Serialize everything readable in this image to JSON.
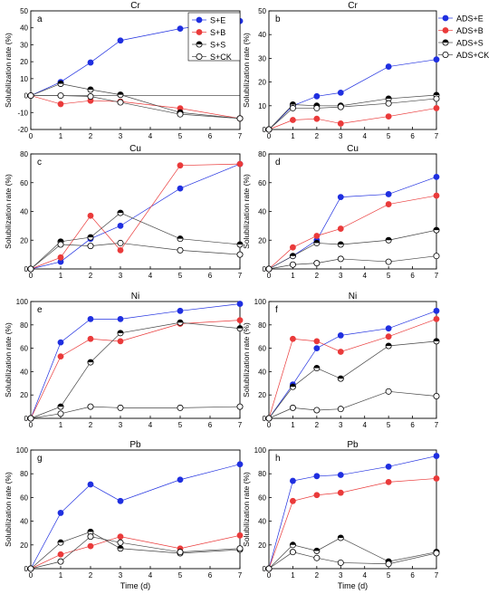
{
  "colors": {
    "E": "#1f2fe0",
    "B": "#ea3a3a",
    "S": "#000000",
    "CK": "#000000"
  },
  "chart_data": [
    {
      "type": "line",
      "panel": "a",
      "title": "Cr",
      "xlabel": "",
      "ylabel": "Solubilization rate (%)",
      "xlim": [
        0,
        7
      ],
      "ylim": [
        -20,
        50
      ],
      "x_ticks": [
        0,
        1,
        2,
        3,
        4,
        5,
        6,
        7
      ],
      "y_ticks": [
        -20,
        -10,
        0,
        10,
        20,
        30,
        40,
        50
      ],
      "legend": "top-right",
      "series": [
        {
          "name": "S+E",
          "key": "E",
          "x": [
            0,
            1,
            2,
            3,
            5,
            7
          ],
          "y": [
            0,
            8,
            19.5,
            32.5,
            39.5,
            44
          ]
        },
        {
          "name": "S+B",
          "key": "B",
          "x": [
            0,
            1,
            2,
            3,
            5,
            7
          ],
          "y": [
            0,
            -5,
            -3,
            -3.5,
            -7.5,
            -13.5
          ]
        },
        {
          "name": "S+S",
          "key": "S",
          "x": [
            0,
            1,
            2,
            3,
            5,
            7
          ],
          "y": [
            0,
            7,
            3.5,
            0.5,
            -10,
            -13.5
          ]
        },
        {
          "name": "S+CK",
          "key": "CK",
          "x": [
            0,
            1,
            2,
            3,
            5,
            7
          ],
          "y": [
            0,
            0,
            -0.5,
            -4,
            -11,
            -13.5
          ]
        }
      ]
    },
    {
      "type": "line",
      "panel": "b",
      "title": "Cr",
      "xlabel": "",
      "ylabel": "Solubilization rate (%)",
      "xlim": [
        0,
        7
      ],
      "ylim": [
        0,
        50
      ],
      "x_ticks": [
        0,
        1,
        2,
        3,
        4,
        5,
        6,
        7
      ],
      "y_ticks": [
        0,
        10,
        20,
        30,
        40,
        50
      ],
      "legend": "top-right",
      "series": [
        {
          "name": "ADS+E",
          "key": "E",
          "x": [
            0,
            1,
            2,
            3,
            5,
            7
          ],
          "y": [
            0,
            10,
            14,
            15.5,
            26.5,
            29.5
          ]
        },
        {
          "name": "ADS+B",
          "key": "B",
          "x": [
            0,
            1,
            2,
            3,
            5,
            7
          ],
          "y": [
            0,
            4,
            4.5,
            2.5,
            5.5,
            9
          ]
        },
        {
          "name": "ADS+S",
          "key": "S",
          "x": [
            0,
            1,
            2,
            3,
            5,
            7
          ],
          "y": [
            0,
            10.5,
            10,
            10,
            13,
            14.5
          ]
        },
        {
          "name": "ADS+CK",
          "key": "CK",
          "x": [
            0,
            1,
            2,
            3,
            5,
            7
          ],
          "y": [
            0,
            9,
            9,
            9.5,
            11,
            13
          ]
        }
      ]
    },
    {
      "type": "line",
      "panel": "c",
      "title": "Cu",
      "xlabel": "",
      "ylabel": "Solubilization rate (%)",
      "xlim": [
        0,
        7
      ],
      "ylim": [
        0,
        80
      ],
      "x_ticks": [
        0,
        1,
        2,
        3,
        4,
        5,
        6,
        7
      ],
      "y_ticks": [
        0,
        20,
        40,
        60,
        80
      ],
      "series": [
        {
          "key": "E",
          "x": [
            0,
            1,
            2,
            3,
            5,
            7
          ],
          "y": [
            0,
            5,
            21,
            30,
            56,
            73
          ]
        },
        {
          "key": "B",
          "x": [
            0,
            1,
            2,
            3,
            5,
            7
          ],
          "y": [
            0,
            8,
            37,
            13,
            72,
            73
          ]
        },
        {
          "key": "S",
          "x": [
            0,
            1,
            2,
            3,
            5,
            7
          ],
          "y": [
            0,
            19,
            22,
            39,
            21,
            17
          ]
        },
        {
          "key": "CK",
          "x": [
            0,
            1,
            2,
            3,
            5,
            7
          ],
          "y": [
            0,
            17,
            16,
            18,
            13,
            10
          ]
        }
      ]
    },
    {
      "type": "line",
      "panel": "d",
      "title": "Cu",
      "xlabel": "",
      "ylabel": "Solubilization rate (%)",
      "xlim": [
        0,
        7
      ],
      "ylim": [
        0,
        80
      ],
      "x_ticks": [
        0,
        1,
        2,
        3,
        4,
        5,
        6,
        7
      ],
      "y_ticks": [
        0,
        20,
        40,
        60,
        80
      ],
      "series": [
        {
          "key": "E",
          "x": [
            0,
            1,
            2,
            3,
            5,
            7
          ],
          "y": [
            0,
            9,
            20,
            50,
            52,
            64
          ]
        },
        {
          "key": "B",
          "x": [
            0,
            1,
            2,
            3,
            5,
            7
          ],
          "y": [
            0,
            15,
            23,
            28,
            45,
            51
          ]
        },
        {
          "key": "S",
          "x": [
            0,
            1,
            2,
            3,
            5,
            7
          ],
          "y": [
            0,
            9,
            18,
            17,
            20,
            27
          ]
        },
        {
          "key": "CK",
          "x": [
            0,
            1,
            2,
            3,
            5,
            7
          ],
          "y": [
            0,
            3,
            4,
            7,
            5,
            9
          ]
        }
      ]
    },
    {
      "type": "line",
      "panel": "e",
      "title": "Ni",
      "xlabel": "",
      "ylabel": "Solubilization rate (%)",
      "xlim": [
        0,
        7
      ],
      "ylim": [
        0,
        100
      ],
      "x_ticks": [
        0,
        1,
        2,
        3,
        4,
        5,
        6,
        7
      ],
      "y_ticks": [
        0,
        20,
        40,
        60,
        80,
        100
      ],
      "series": [
        {
          "key": "E",
          "x": [
            0,
            1,
            2,
            3,
            5,
            7
          ],
          "y": [
            0,
            65,
            85,
            85,
            92,
            98
          ]
        },
        {
          "key": "B",
          "x": [
            0,
            1,
            2,
            3,
            5,
            7
          ],
          "y": [
            0,
            53,
            68,
            66,
            81,
            84
          ]
        },
        {
          "key": "S",
          "x": [
            0,
            1,
            2,
            3,
            5,
            7
          ],
          "y": [
            0,
            10,
            48,
            73,
            82,
            77
          ]
        },
        {
          "key": "CK",
          "x": [
            0,
            1,
            2,
            3,
            5,
            7
          ],
          "y": [
            0,
            4,
            10,
            9,
            9,
            10
          ]
        }
      ]
    },
    {
      "type": "line",
      "panel": "f",
      "title": "Ni",
      "xlabel": "",
      "ylabel": "Solubilization rate (%)",
      "xlim": [
        0,
        7
      ],
      "ylim": [
        0,
        100
      ],
      "x_ticks": [
        0,
        1,
        2,
        3,
        4,
        5,
        6,
        7
      ],
      "y_ticks": [
        0,
        20,
        40,
        60,
        80,
        100
      ],
      "series": [
        {
          "key": "E",
          "x": [
            0,
            1,
            2,
            3,
            5,
            7
          ],
          "y": [
            0,
            29,
            60,
            71,
            77,
            92
          ]
        },
        {
          "key": "B",
          "x": [
            0,
            1,
            2,
            3,
            5,
            7
          ],
          "y": [
            0,
            68,
            66,
            57,
            70,
            85
          ]
        },
        {
          "key": "S",
          "x": [
            0,
            1,
            2,
            3,
            5,
            7
          ],
          "y": [
            0,
            27,
            43,
            34,
            62,
            66
          ]
        },
        {
          "key": "CK",
          "x": [
            0,
            1,
            2,
            3,
            5,
            7
          ],
          "y": [
            0,
            9,
            7,
            8,
            23,
            19
          ]
        }
      ]
    },
    {
      "type": "line",
      "panel": "g",
      "title": "Pb",
      "xlabel": "Time (d)",
      "ylabel": "Solubilization rate (%)",
      "xlim": [
        0,
        7
      ],
      "ylim": [
        0,
        100
      ],
      "x_ticks": [
        0,
        1,
        2,
        3,
        4,
        5,
        6,
        7
      ],
      "y_ticks": [
        0,
        20,
        40,
        60,
        80,
        100
      ],
      "series": [
        {
          "key": "E",
          "x": [
            0,
            1,
            2,
            3,
            5,
            7
          ],
          "y": [
            0,
            47,
            71,
            57,
            75,
            88
          ]
        },
        {
          "key": "B",
          "x": [
            0,
            1,
            2,
            3,
            5,
            7
          ],
          "y": [
            0,
            12,
            19,
            27,
            17,
            28
          ]
        },
        {
          "key": "S",
          "x": [
            0,
            1,
            2,
            3,
            5,
            7
          ],
          "y": [
            0,
            22,
            31,
            17,
            13,
            16
          ]
        },
        {
          "key": "CK",
          "x": [
            0,
            1,
            2,
            3,
            5,
            7
          ],
          "y": [
            0,
            6,
            27,
            22,
            14,
            17
          ]
        }
      ]
    },
    {
      "type": "line",
      "panel": "h",
      "title": "Pb",
      "xlabel": "Time (d)",
      "ylabel": "Solubilization rate (%)",
      "xlim": [
        0,
        7
      ],
      "ylim": [
        0,
        100
      ],
      "x_ticks": [
        0,
        1,
        2,
        3,
        4,
        5,
        6,
        7
      ],
      "y_ticks": [
        0,
        20,
        40,
        60,
        80,
        100
      ],
      "series": [
        {
          "key": "E",
          "x": [
            0,
            1,
            2,
            3,
            5,
            7
          ],
          "y": [
            0,
            74,
            78,
            79,
            86,
            95
          ]
        },
        {
          "key": "B",
          "x": [
            0,
            1,
            2,
            3,
            5,
            7
          ],
          "y": [
            0,
            57,
            62,
            64,
            73,
            76
          ]
        },
        {
          "key": "S",
          "x": [
            0,
            1,
            2,
            3,
            5,
            7
          ],
          "y": [
            0,
            20,
            15,
            26,
            6,
            14
          ]
        },
        {
          "key": "CK",
          "x": [
            0,
            1,
            2,
            3,
            5,
            7
          ],
          "y": [
            0,
            14,
            9,
            5,
            4,
            13
          ]
        }
      ]
    }
  ]
}
